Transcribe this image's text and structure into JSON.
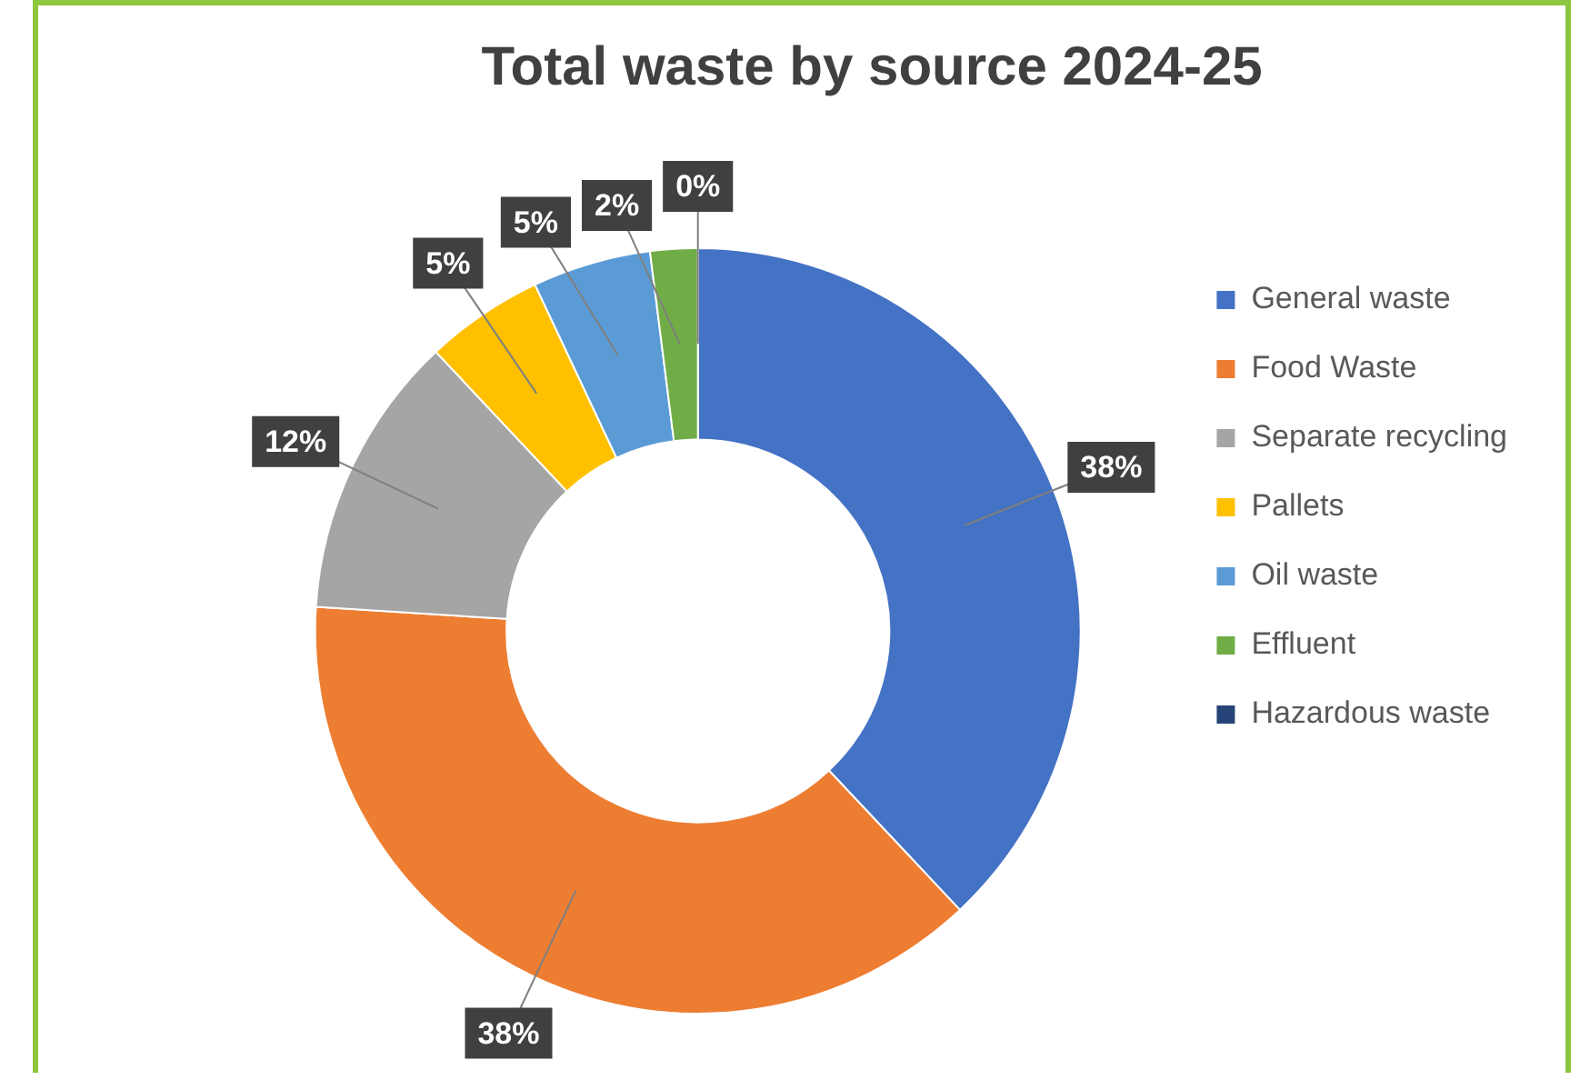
{
  "chart_data": {
    "type": "donut",
    "title": "Total waste by source 2024-25",
    "categories": [
      "General waste",
      "Food Waste",
      "Separate recycling",
      "Pallets",
      "Oil waste",
      "Effluent",
      "Hazardous waste"
    ],
    "values": [
      38,
      38,
      12,
      5,
      5,
      2,
      0
    ],
    "value_labels": [
      "38%",
      "38%",
      "12%",
      "5%",
      "5%",
      "2%",
      "0%"
    ],
    "colors": [
      "#4472c4",
      "#ed7d31",
      "#a5a5a5",
      "#ffc000",
      "#5b9bd5",
      "#70ad47",
      "#264478"
    ],
    "legend": "right"
  }
}
